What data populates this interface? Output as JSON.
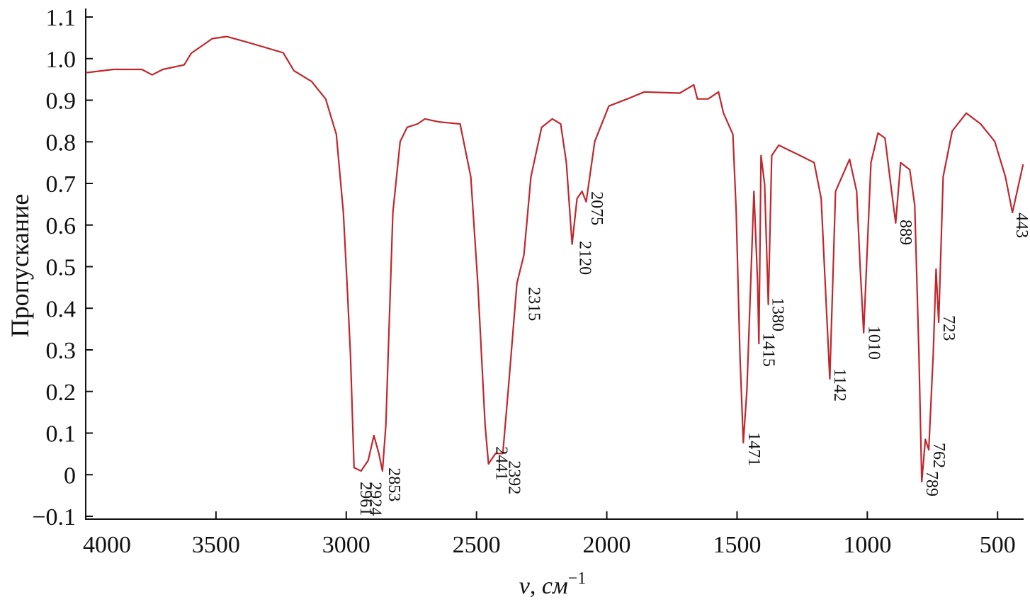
{
  "chart_data": {
    "type": "line",
    "x_label": "ν, см",
    "x_label_sup": "−1",
    "y_label": "Пропускание",
    "color": "#c0272d",
    "x": [
      4000,
      3894,
      3785,
      3745,
      3704,
      3622,
      3595,
      3514,
      3459,
      3378,
      3242,
      3201,
      3133,
      3079,
      3038,
      3011,
      2997,
      2984,
      2970,
      2943,
      2916,
      2894,
      2875,
      2861,
      2848,
      2821,
      2793,
      2766,
      2726,
      2698,
      2644,
      2563,
      2522,
      2495,
      2467,
      2454,
      2427,
      2399,
      2378,
      2345,
      2318,
      2291,
      2250,
      2209,
      2177,
      2155,
      2133,
      2114,
      2095,
      2079,
      2046,
      1992,
      1910,
      1856,
      1720,
      1666,
      1652,
      1611,
      1571,
      1552,
      1516,
      1503,
      1489,
      1476,
      1462,
      1435,
      1421,
      1416,
      1408,
      1394,
      1380,
      1367,
      1340,
      1258,
      1204,
      1177,
      1155,
      1144,
      1122,
      1068,
      1041,
      1027,
      1014,
      986,
      959,
      932,
      910,
      891,
      872,
      837,
      818,
      802,
      791,
      777,
      764,
      747,
      736,
      726,
      709,
      674,
      620,
      565,
      511,
      470,
      443,
      402
    ],
    "values": [
      0.966,
      0.974,
      0.974,
      0.961,
      0.974,
      0.985,
      1.013,
      1.048,
      1.053,
      1.039,
      1.014,
      0.971,
      0.945,
      0.903,
      0.818,
      0.63,
      0.46,
      0.29,
      0.017,
      0.009,
      0.034,
      0.094,
      0.051,
      0.009,
      0.119,
      0.63,
      0.801,
      0.835,
      0.843,
      0.855,
      0.848,
      0.843,
      0.716,
      0.46,
      0.119,
      0.026,
      0.051,
      0.051,
      0.204,
      0.46,
      0.528,
      0.716,
      0.835,
      0.855,
      0.843,
      0.75,
      0.554,
      0.664,
      0.681,
      0.656,
      0.801,
      0.886,
      0.906,
      0.92,
      0.917,
      0.937,
      0.903,
      0.903,
      0.92,
      0.869,
      0.818,
      0.63,
      0.29,
      0.077,
      0.204,
      0.681,
      0.46,
      0.315,
      0.767,
      0.698,
      0.409,
      0.767,
      0.792,
      0.767,
      0.75,
      0.664,
      0.375,
      0.23,
      0.681,
      0.758,
      0.681,
      0.494,
      0.341,
      0.75,
      0.821,
      0.809,
      0.698,
      0.605,
      0.75,
      0.733,
      0.647,
      0.29,
      -0.017,
      0.085,
      0.06,
      0.29,
      0.494,
      0.366,
      0.716,
      0.826,
      0.869,
      0.843,
      0.801,
      0.716,
      0.63,
      0.746
    ],
    "annotations": [
      {
        "x": 2961,
        "y": -0.017
      },
      {
        "x": 2924,
        "y": -0.017
      },
      {
        "x": 2853,
        "y": 0.017
      },
      {
        "x": 2441,
        "y": 0.068
      },
      {
        "x": 2392,
        "y": 0.034
      },
      {
        "x": 2315,
        "y": 0.451
      },
      {
        "x": 2120,
        "y": 0.562
      },
      {
        "x": 2075,
        "y": 0.681
      },
      {
        "x": 1471,
        "y": 0.102
      },
      {
        "x": 1415,
        "y": 0.341
      },
      {
        "x": 1380,
        "y": 0.426
      },
      {
        "x": 1142,
        "y": 0.256
      },
      {
        "x": 1010,
        "y": 0.358
      },
      {
        "x": 889,
        "y": 0.613
      },
      {
        "x": 789,
        "y": 0.009
      },
      {
        "x": 762,
        "y": 0.077
      },
      {
        "x": 723,
        "y": 0.383
      },
      {
        "x": 443,
        "y": 0.63
      }
    ],
    "xlim": [
      4000,
      400
    ],
    "xticks": [
      4000,
      3500,
      3000,
      2500,
      2000,
      1500,
      1000,
      500
    ],
    "ylim": [
      -0.1,
      1.1
    ],
    "yticks": [
      {
        "value": -0.1,
        "label": "−0.1"
      },
      0,
      0.1,
      0.2,
      0.3,
      0.4,
      0.5,
      0.6,
      0.7,
      0.8,
      0.9,
      {
        "value": 1,
        "label": "1.0"
      },
      1.1
    ]
  }
}
